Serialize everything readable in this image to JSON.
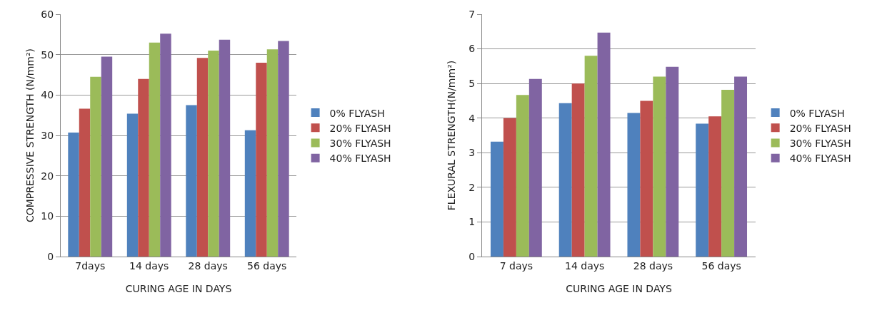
{
  "chart_data": [
    {
      "type": "bar",
      "xlabel": "CURING AGE IN DAYS",
      "ylabel": "COMPRESSIVE STRENGTH (N/mm²)",
      "categories": [
        "7days",
        "14 days",
        "28 days",
        "56 days"
      ],
      "series": [
        {
          "name": "0% FLYASH",
          "color": "#4f81bd",
          "values": [
            30.7,
            35.4,
            37.5,
            31.3
          ]
        },
        {
          "name": "20% FLYASH",
          "color": "#c0504d",
          "values": [
            36.6,
            44,
            49.2,
            48
          ]
        },
        {
          "name": "30% FLYASH",
          "color": "#9bbb59",
          "values": [
            44.5,
            53,
            51,
            51.3
          ]
        },
        {
          "name": "40% FLYASH",
          "color": "#8064a2",
          "values": [
            49.5,
            55.2,
            53.7,
            53.4
          ]
        }
      ],
      "ylim": [
        0,
        60
      ],
      "yticks": [
        0,
        10,
        20,
        30,
        40,
        50,
        60
      ],
      "grid": "y",
      "legend": "right"
    },
    {
      "type": "bar",
      "xlabel": "CURING AGE IN DAYS",
      "ylabel": "FLEXURAL STRENGTH(N/mm²)",
      "categories": [
        "7 days",
        "14 days",
        "28 days",
        "56 days"
      ],
      "series": [
        {
          "name": "0% FLYASH",
          "color": "#4f81bd",
          "values": [
            3.32,
            4.43,
            4.15,
            3.84
          ]
        },
        {
          "name": "20% FLYASH",
          "color": "#c0504d",
          "values": [
            4.0,
            5.0,
            4.5,
            4.05
          ]
        },
        {
          "name": "30% FLYASH",
          "color": "#9bbb59",
          "values": [
            4.67,
            5.8,
            5.2,
            4.82
          ]
        },
        {
          "name": "40% FLYASH",
          "color": "#8064a2",
          "values": [
            5.13,
            6.47,
            5.48,
            5.2
          ]
        }
      ],
      "ylim": [
        0,
        7
      ],
      "yticks": [
        0,
        1,
        2,
        3,
        4,
        5,
        6,
        7
      ],
      "grid": "y",
      "legend": "right"
    }
  ]
}
